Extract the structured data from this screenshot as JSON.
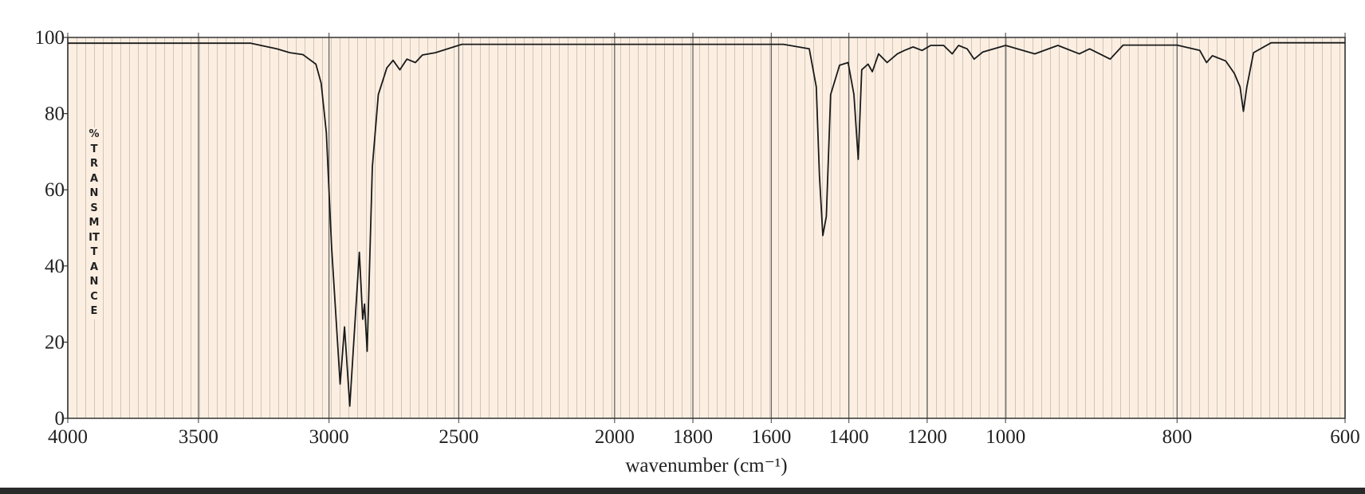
{
  "chart_data": {
    "type": "line",
    "x_label": "wavenumber (cm⁻¹)",
    "y_label": "%TRANSMITTANCE",
    "color": "#1a1a1a",
    "x": [
      4000,
      3300,
      3200,
      3150,
      3100,
      3050,
      3030,
      3010,
      3000,
      2990,
      2957,
      2940,
      2920,
      2883,
      2870,
      2863,
      2853,
      2833,
      2810,
      2777,
      2753,
      2727,
      2700,
      2667,
      2640,
      2590,
      2490,
      1569,
      1502,
      1484,
      1476,
      1467,
      1458,
      1447,
      1424,
      1402,
      1387,
      1376,
      1367,
      1351,
      1340,
      1324,
      1302,
      1276,
      1258,
      1236,
      1213,
      1191,
      1158,
      1136,
      1120,
      1098,
      1080,
      1058,
      1000,
      966,
      939,
      914,
      902,
      878,
      863,
      800,
      773,
      765,
      758,
      742,
      732,
      725,
      721,
      717,
      709,
      688,
      600
    ],
    "values": [
      98.5,
      98.5,
      97,
      96,
      95.5,
      93,
      88,
      75,
      60,
      45,
      9,
      24,
      3.2,
      43.6,
      26,
      30,
      17.6,
      66,
      85,
      92,
      94,
      91.5,
      94.3,
      93.4,
      95.4,
      96,
      98.2,
      98.2,
      97,
      87,
      64,
      48,
      53,
      85,
      92.7,
      93.4,
      85,
      68,
      91.5,
      93,
      91,
      95.7,
      93.4,
      95.7,
      96.6,
      97.5,
      96.6,
      97.9,
      97.9,
      95.7,
      97.9,
      97,
      94.3,
      96.2,
      97.9,
      95.7,
      97.9,
      95.7,
      97,
      94.3,
      98,
      98,
      96.6,
      93.4,
      95.2,
      93.8,
      90.6,
      87,
      80.6,
      87,
      96,
      98.6,
      98.6
    ],
    "xlim": [
      4000,
      600
    ],
    "xticks": [
      4000,
      3500,
      3000,
      2500,
      2000,
      1800,
      1600,
      1400,
      1200,
      1000,
      800,
      600
    ],
    "ylim": [
      0,
      100
    ],
    "yticks": [
      0,
      20,
      40,
      60,
      80,
      100
    ],
    "grid": true
  }
}
